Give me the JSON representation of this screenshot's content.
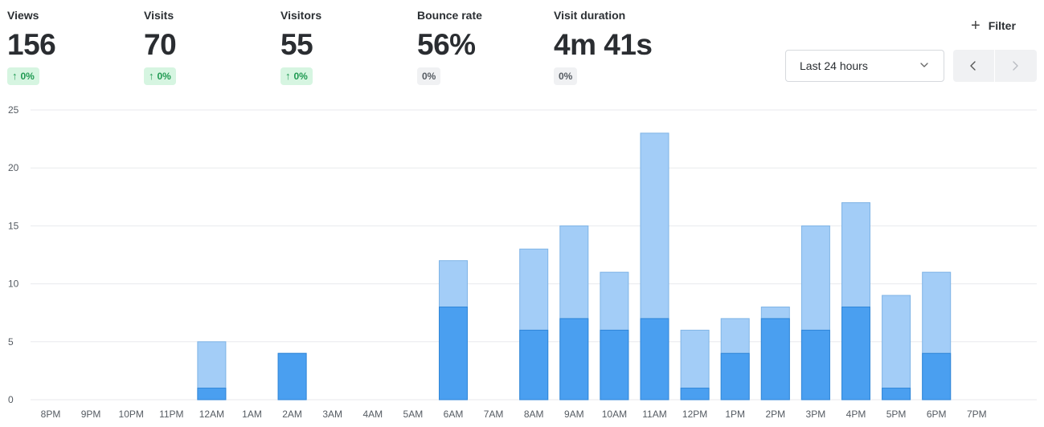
{
  "metrics": [
    {
      "id": "views",
      "label": "Views",
      "value": "156",
      "change": "0%",
      "trend": "up"
    },
    {
      "id": "visits",
      "label": "Visits",
      "value": "70",
      "change": "0%",
      "trend": "up"
    },
    {
      "id": "visitors",
      "label": "Visitors",
      "value": "55",
      "change": "0%",
      "trend": "up"
    },
    {
      "id": "bounce-rate",
      "label": "Bounce rate",
      "value": "56%",
      "change": "0%",
      "trend": "flat"
    },
    {
      "id": "visit-duration",
      "label": "Visit duration",
      "value": "4m 41s",
      "change": "0%",
      "trend": "flat"
    }
  ],
  "toolbar": {
    "filter_label": "Filter",
    "range_label": "Last 24 hours",
    "icons": {
      "filter": "plus-icon",
      "range": "chevron-down-icon",
      "prev": "chevron-left-icon",
      "next": "chevron-right-icon"
    }
  },
  "colors": {
    "views_bar": "#a3cdf7",
    "visitors_bar": "#4a9ff0",
    "views_stroke": "#7fb4e6",
    "visitors_stroke": "#2f86d8",
    "grid": "#e8eaed",
    "badge_up_bg": "#d6f5e1",
    "badge_up_text": "#1f9a52",
    "badge_flat_bg": "#f0f1f3"
  },
  "chart_data": {
    "type": "bar",
    "stacked": "overlay",
    "categories": [
      "8PM",
      "9PM",
      "10PM",
      "11PM",
      "12AM",
      "1AM",
      "2AM",
      "3AM",
      "4AM",
      "5AM",
      "6AM",
      "7AM",
      "8AM",
      "9AM",
      "10AM",
      "11AM",
      "12PM",
      "1PM",
      "2PM",
      "3PM",
      "4PM",
      "5PM",
      "6PM",
      "7PM"
    ],
    "series": [
      {
        "key": "views",
        "values": [
          0,
          0,
          0,
          0,
          5,
          0,
          4,
          0,
          0,
          0,
          12,
          0,
          13,
          15,
          11,
          23,
          6,
          7,
          8,
          15,
          17,
          9,
          11,
          0
        ]
      },
      {
        "key": "visitors",
        "values": [
          0,
          0,
          0,
          0,
          1,
          0,
          4,
          0,
          0,
          0,
          8,
          0,
          6,
          7,
          6,
          7,
          1,
          4,
          7,
          6,
          8,
          1,
          4,
          0
        ]
      }
    ],
    "yticks": [
      0,
      5,
      10,
      15,
      20,
      25
    ],
    "ylim": [
      0,
      25
    ],
    "grid": true,
    "legend": "none"
  }
}
